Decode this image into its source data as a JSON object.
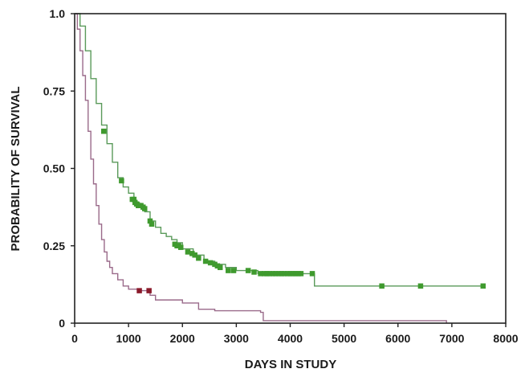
{
  "chart_data": {
    "type": "line",
    "title": "",
    "xlabel": "DAYS IN STUDY",
    "ylabel": "PROBABILITY OF SURVIVAL",
    "xlim": [
      0,
      8000
    ],
    "ylim": [
      0,
      1.0
    ],
    "x_ticks": [
      0,
      1000,
      2000,
      3000,
      4000,
      5000,
      6000,
      7000,
      8000
    ],
    "y_ticks": [
      0,
      0.25,
      0.5,
      0.75,
      1.0
    ],
    "y_tick_labels": [
      "0",
      "0.25",
      "0.50",
      "0.75",
      "1.0"
    ],
    "grid": false,
    "series": [
      {
        "color": "#5a9a5a",
        "marker_color": "#3f9a2e",
        "points": [
          [
            0,
            1.0
          ],
          [
            100,
            0.96
          ],
          [
            200,
            0.88
          ],
          [
            300,
            0.79
          ],
          [
            400,
            0.71
          ],
          [
            500,
            0.64
          ],
          [
            600,
            0.58
          ],
          [
            700,
            0.52
          ],
          [
            800,
            0.47
          ],
          [
            900,
            0.44
          ],
          [
            1000,
            0.42
          ],
          [
            1100,
            0.39
          ],
          [
            1200,
            0.38
          ],
          [
            1300,
            0.36
          ],
          [
            1400,
            0.33
          ],
          [
            1500,
            0.31
          ],
          [
            1600,
            0.29
          ],
          [
            1700,
            0.28
          ],
          [
            1800,
            0.27
          ],
          [
            1900,
            0.26
          ],
          [
            2000,
            0.24
          ],
          [
            2200,
            0.22
          ],
          [
            2400,
            0.2
          ],
          [
            2600,
            0.19
          ],
          [
            2800,
            0.18
          ],
          [
            3000,
            0.17
          ],
          [
            3400,
            0.16
          ],
          [
            4400,
            0.16
          ],
          [
            4450,
            0.12
          ],
          [
            7600,
            0.12
          ]
        ],
        "censored": [
          [
            540,
            0.62
          ],
          [
            870,
            0.46
          ],
          [
            1070,
            0.4
          ],
          [
            1100,
            0.4
          ],
          [
            1120,
            0.39
          ],
          [
            1150,
            0.385
          ],
          [
            1180,
            0.38
          ],
          [
            1200,
            0.38
          ],
          [
            1230,
            0.38
          ],
          [
            1270,
            0.375
          ],
          [
            1300,
            0.37
          ],
          [
            1400,
            0.33
          ],
          [
            1430,
            0.32
          ],
          [
            1860,
            0.255
          ],
          [
            1900,
            0.25
          ],
          [
            1930,
            0.25
          ],
          [
            1970,
            0.245
          ],
          [
            2100,
            0.23
          ],
          [
            2180,
            0.225
          ],
          [
            2230,
            0.22
          ],
          [
            2300,
            0.21
          ],
          [
            2430,
            0.2
          ],
          [
            2520,
            0.195
          ],
          [
            2600,
            0.19
          ],
          [
            2650,
            0.185
          ],
          [
            2700,
            0.18
          ],
          [
            2850,
            0.17
          ],
          [
            2950,
            0.17
          ],
          [
            3220,
            0.17
          ],
          [
            3330,
            0.165
          ],
          [
            3450,
            0.16
          ],
          [
            3520,
            0.16
          ],
          [
            3570,
            0.16
          ],
          [
            3620,
            0.16
          ],
          [
            3680,
            0.16
          ],
          [
            3730,
            0.16
          ],
          [
            3790,
            0.16
          ],
          [
            3840,
            0.16
          ],
          [
            3890,
            0.16
          ],
          [
            3950,
            0.16
          ],
          [
            4000,
            0.16
          ],
          [
            4050,
            0.16
          ],
          [
            4100,
            0.16
          ],
          [
            4150,
            0.16
          ],
          [
            4200,
            0.16
          ],
          [
            4410,
            0.16
          ],
          [
            5700,
            0.12
          ],
          [
            6420,
            0.12
          ],
          [
            7580,
            0.12
          ]
        ]
      },
      {
        "color": "#9a6a8a",
        "marker_color": "#8a1a2a",
        "points": [
          [
            0,
            1.0
          ],
          [
            50,
            0.95
          ],
          [
            100,
            0.88
          ],
          [
            150,
            0.8
          ],
          [
            200,
            0.72
          ],
          [
            250,
            0.62
          ],
          [
            300,
            0.53
          ],
          [
            350,
            0.45
          ],
          [
            400,
            0.38
          ],
          [
            450,
            0.32
          ],
          [
            500,
            0.27
          ],
          [
            550,
            0.23
          ],
          [
            600,
            0.2
          ],
          [
            650,
            0.18
          ],
          [
            700,
            0.16
          ],
          [
            800,
            0.14
          ],
          [
            900,
            0.12
          ],
          [
            1000,
            0.11
          ],
          [
            1200,
            0.105
          ],
          [
            1400,
            0.09
          ],
          [
            1500,
            0.075
          ],
          [
            2000,
            0.065
          ],
          [
            2300,
            0.045
          ],
          [
            2600,
            0.04
          ],
          [
            3450,
            0.035
          ],
          [
            3500,
            0.008
          ],
          [
            6900,
            0.008
          ],
          [
            6900,
            0.0
          ]
        ],
        "censored": [
          [
            1200,
            0.105
          ],
          [
            1380,
            0.105
          ]
        ]
      }
    ]
  }
}
